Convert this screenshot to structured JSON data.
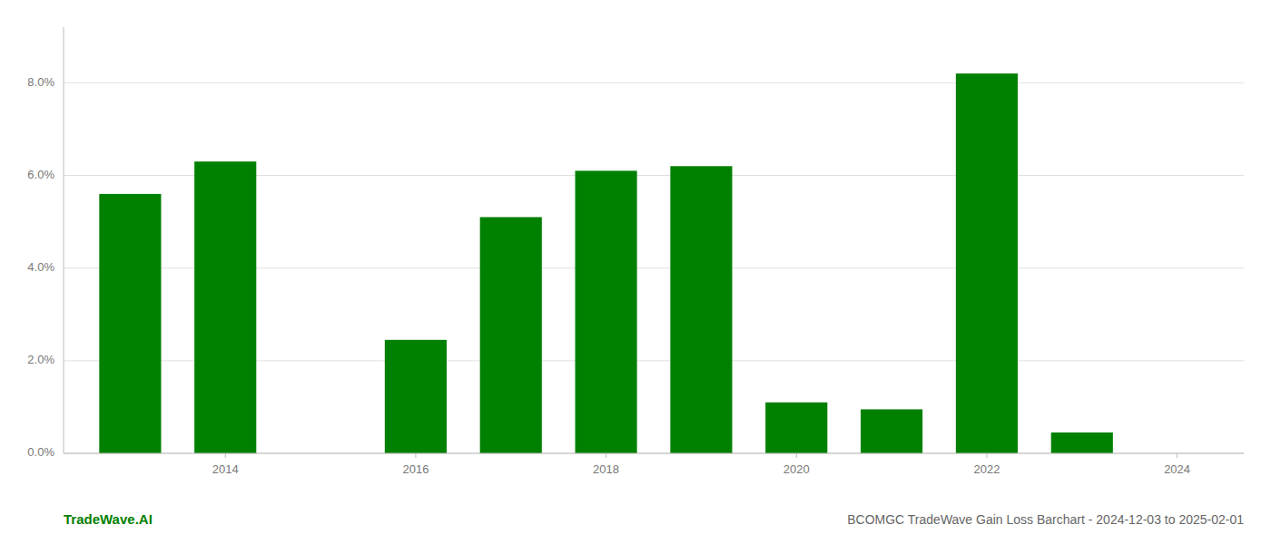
{
  "chart_data": {
    "type": "bar",
    "title": "BCOMGC TradeWave Gain Loss Barchart - 2024-12-03 to 2025-02-01",
    "annotations": [
      "TradeWave.AI"
    ],
    "x": [
      2013,
      2014,
      2016,
      2017,
      2018,
      2019,
      2020,
      2021,
      2022,
      2023
    ],
    "values": [
      0.056,
      0.063,
      0.0245,
      0.051,
      0.061,
      0.062,
      0.011,
      0.0095,
      0.082,
      0.0045
    ],
    "color": "#008000",
    "xlim": [
      2012.3,
      2024.7
    ],
    "xticks": [
      2014,
      2016,
      2018,
      2020,
      2022,
      2024
    ],
    "ylim": [
      0.0,
      0.092
    ],
    "yticks": [
      {
        "value": 0.0,
        "label": "0.0%"
      },
      {
        "value": 0.02,
        "label": "2.0%"
      },
      {
        "value": 0.04,
        "label": "4.0%"
      },
      {
        "value": 0.06,
        "label": "6.0%"
      },
      {
        "value": 0.08,
        "label": "8.0%"
      }
    ],
    "grid": true
  }
}
